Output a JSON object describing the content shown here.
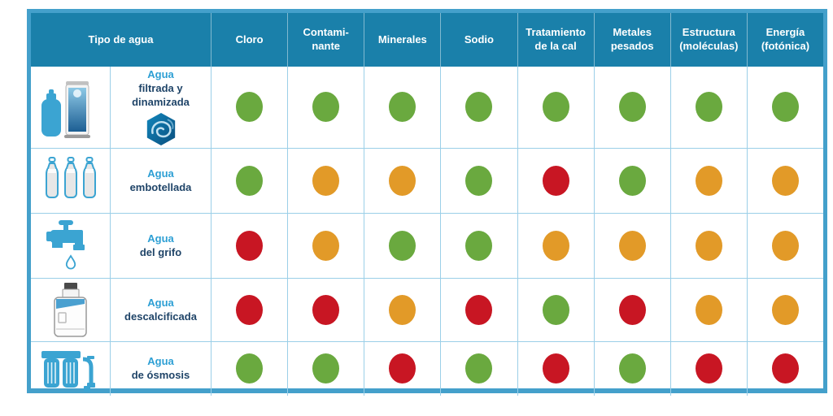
{
  "chart_data": {
    "type": "table",
    "row_header": "Tipo de agua",
    "columns": [
      "Cloro",
      "Contami- nante",
      "Minerales",
      "Sodio",
      "Tratamiento de la cal",
      "Metales pesados",
      "Estructura (moléculas)",
      "Energía (fotónica)"
    ],
    "rows": [
      {
        "icon": "filter-dynamizer-icon",
        "label_top": "Agua",
        "label_bottom": "filtrada y dinamizada",
        "ratings": [
          "green",
          "green",
          "green",
          "green",
          "green",
          "green",
          "green",
          "green"
        ]
      },
      {
        "icon": "bottles-icon",
        "label_top": "Agua",
        "label_bottom": "embotellada",
        "ratings": [
          "green",
          "orange",
          "orange",
          "green",
          "red",
          "green",
          "orange",
          "orange"
        ]
      },
      {
        "icon": "tap-icon",
        "label_top": "Agua",
        "label_bottom": "del grifo",
        "ratings": [
          "red",
          "orange",
          "green",
          "green",
          "orange",
          "orange",
          "orange",
          "orange"
        ]
      },
      {
        "icon": "softener-icon",
        "label_top": "Agua",
        "label_bottom": "descalcificada",
        "ratings": [
          "red",
          "red",
          "orange",
          "red",
          "green",
          "red",
          "orange",
          "orange"
        ]
      },
      {
        "icon": "osmosis-icon",
        "label_top": "Agua",
        "label_bottom": "de ósmosis",
        "ratings": [
          "green",
          "green",
          "red",
          "green",
          "red",
          "green",
          "red",
          "red"
        ]
      }
    ],
    "rating_colors": {
      "green": "#6aa93f",
      "orange": "#e29a28",
      "red": "#c81623"
    },
    "style_colors": {
      "header_bg": "#1a80aa",
      "frame": "#44a0cb",
      "grid": "#9bcfe8"
    }
  }
}
